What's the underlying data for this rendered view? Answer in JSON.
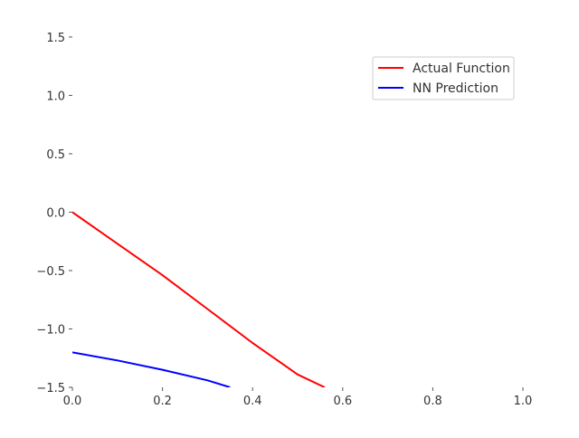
{
  "chart_data": {
    "type": "line",
    "title": "",
    "xlabel": "",
    "ylabel": "",
    "xlim": [
      0.0,
      1.0
    ],
    "ylim": [
      -1.5,
      1.6
    ],
    "x_ticks": [
      0.0,
      0.2,
      0.4,
      0.6,
      0.8,
      1.0
    ],
    "x_tick_labels": [
      "0.0",
      "0.2",
      "0.4",
      "0.6",
      "0.8",
      "1.0"
    ],
    "y_ticks": [
      1.5,
      1.0,
      0.5,
      0.0,
      -0.5,
      -1.0,
      -1.5
    ],
    "y_tick_labels": [
      "1.5",
      "1.0",
      "0.5",
      "0.0",
      "−0.5",
      "−1.0",
      "−1.5"
    ],
    "grid": false,
    "legend_position": "top-right",
    "series": [
      {
        "name": "Actual Function",
        "color": "#ff0000",
        "x": [
          0.0,
          0.1,
          0.2,
          0.3,
          0.4,
          0.5,
          0.56
        ],
        "y": [
          0.0,
          -0.27,
          -0.54,
          -0.83,
          -1.12,
          -1.39,
          -1.5
        ]
      },
      {
        "name": "NN Prediction",
        "color": "#0000ff",
        "x": [
          0.0,
          0.1,
          0.2,
          0.3,
          0.35
        ],
        "y": [
          -1.2,
          -1.27,
          -1.35,
          -1.44,
          -1.5
        ]
      }
    ]
  }
}
